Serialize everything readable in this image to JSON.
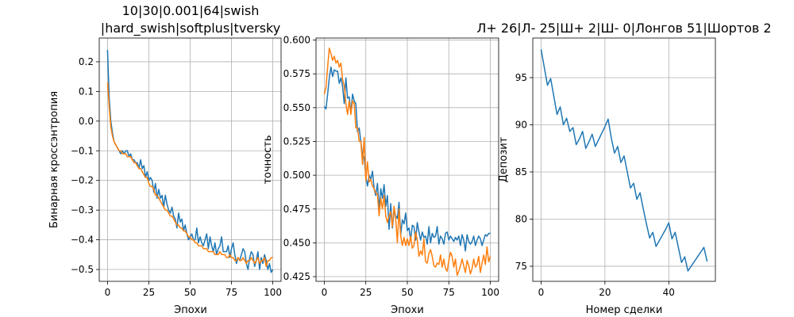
{
  "chart_data": [
    {
      "type": "line",
      "title": "10|30|0.001|64|swish\n|hard_swish|softplus|tversky",
      "xlabel": "Эпохи",
      "ylabel": "Бинарная кроссэнтропия",
      "xlim": [
        -5,
        105
      ],
      "ylim": [
        -0.54,
        0.28
      ],
      "xticks": [
        0,
        25,
        50,
        75,
        100
      ],
      "yticks": [
        -0.5,
        -0.4,
        -0.3,
        -0.2,
        -0.1,
        0.0,
        0.1,
        0.2
      ],
      "ytick_labels": [
        "−0.5",
        "−0.4",
        "−0.3",
        "−0.2",
        "−0.1",
        "0.0",
        "0.1",
        "0.2"
      ],
      "grid": true,
      "colors": [
        "#1f77b4",
        "#ff7f0e"
      ],
      "series": [
        {
          "x": [
            0,
            1,
            2,
            3,
            4,
            5,
            6,
            7,
            8,
            9,
            10,
            11,
            12,
            13,
            14,
            15,
            16,
            17,
            18,
            19,
            20,
            21,
            22,
            23,
            24,
            25,
            26,
            27,
            28,
            29,
            30,
            31,
            32,
            33,
            34,
            35,
            36,
            37,
            38,
            39,
            40,
            41,
            42,
            43,
            44,
            45,
            46,
            47,
            48,
            49,
            50,
            51,
            52,
            53,
            54,
            55,
            56,
            57,
            58,
            59,
            60,
            61,
            62,
            63,
            64,
            65,
            66,
            67,
            68,
            69,
            70,
            71,
            72,
            73,
            74,
            75,
            76,
            77,
            78,
            79,
            80,
            81,
            82,
            83,
            84,
            85,
            86,
            87,
            88,
            89,
            90,
            91,
            92,
            93,
            94,
            95,
            96,
            97,
            98,
            99,
            100
          ],
          "values": [
            0.24,
            0.08,
            0.0,
            -0.04,
            -0.07,
            -0.08,
            -0.09,
            -0.1,
            -0.11,
            -0.1,
            -0.11,
            -0.1,
            -0.1,
            -0.12,
            -0.11,
            -0.13,
            -0.13,
            -0.14,
            -0.14,
            -0.16,
            -0.13,
            -0.16,
            -0.15,
            -0.19,
            -0.17,
            -0.2,
            -0.19,
            -0.2,
            -0.24,
            -0.21,
            -0.26,
            -0.23,
            -0.26,
            -0.25,
            -0.29,
            -0.25,
            -0.28,
            -0.3,
            -0.31,
            -0.29,
            -0.32,
            -0.33,
            -0.36,
            -0.31,
            -0.34,
            -0.33,
            -0.37,
            -0.35,
            -0.38,
            -0.4,
            -0.39,
            -0.38,
            -0.4,
            -0.4,
            -0.36,
            -0.41,
            -0.39,
            -0.41,
            -0.42,
            -0.4,
            -0.38,
            -0.43,
            -0.39,
            -0.42,
            -0.44,
            -0.41,
            -0.45,
            -0.43,
            -0.42,
            -0.39,
            -0.44,
            -0.44,
            -0.44,
            -0.42,
            -0.46,
            -0.43,
            -0.41,
            -0.45,
            -0.48,
            -0.46,
            -0.47,
            -0.45,
            -0.43,
            -0.44,
            -0.48,
            -0.5,
            -0.46,
            -0.44,
            -0.45,
            -0.49,
            -0.47,
            -0.44,
            -0.5,
            -0.46,
            -0.48,
            -0.45,
            -0.47,
            -0.5,
            -0.48,
            -0.51,
            -0.5
          ]
        },
        {
          "x": [
            0,
            1,
            2,
            3,
            4,
            5,
            6,
            7,
            8,
            9,
            10,
            11,
            12,
            13,
            14,
            15,
            16,
            17,
            18,
            19,
            20,
            21,
            22,
            23,
            24,
            25,
            26,
            27,
            28,
            29,
            30,
            31,
            32,
            33,
            34,
            35,
            36,
            37,
            38,
            39,
            40,
            41,
            42,
            43,
            44,
            45,
            46,
            47,
            48,
            49,
            50,
            51,
            52,
            53,
            54,
            55,
            56,
            57,
            58,
            59,
            60,
            61,
            62,
            63,
            64,
            65,
            66,
            67,
            68,
            69,
            70,
            71,
            72,
            73,
            74,
            75,
            76,
            77,
            78,
            79,
            80,
            81,
            82,
            83,
            84,
            85,
            86,
            87,
            88,
            89,
            90,
            91,
            92,
            93,
            94,
            95,
            96,
            97,
            98,
            99,
            100
          ],
          "values": [
            0.13,
            0.05,
            -0.02,
            -0.05,
            -0.07,
            -0.08,
            -0.09,
            -0.1,
            -0.1,
            -0.11,
            -0.11,
            -0.11,
            -0.12,
            -0.12,
            -0.12,
            -0.13,
            -0.14,
            -0.14,
            -0.15,
            -0.16,
            -0.16,
            -0.17,
            -0.18,
            -0.19,
            -0.19,
            -0.21,
            -0.22,
            -0.22,
            -0.23,
            -0.25,
            -0.25,
            -0.26,
            -0.27,
            -0.28,
            -0.29,
            -0.3,
            -0.3,
            -0.31,
            -0.32,
            -0.32,
            -0.33,
            -0.34,
            -0.35,
            -0.35,
            -0.36,
            -0.36,
            -0.37,
            -0.37,
            -0.38,
            -0.39,
            -0.39,
            -0.4,
            -0.4,
            -0.41,
            -0.41,
            -0.42,
            -0.42,
            -0.42,
            -0.43,
            -0.43,
            -0.43,
            -0.44,
            -0.44,
            -0.44,
            -0.44,
            -0.45,
            -0.45,
            -0.45,
            -0.44,
            -0.45,
            -0.45,
            -0.45,
            -0.46,
            -0.46,
            -0.45,
            -0.46,
            -0.46,
            -0.47,
            -0.47,
            -0.46,
            -0.47,
            -0.47,
            -0.46,
            -0.47,
            -0.48,
            -0.47,
            -0.47,
            -0.46,
            -0.47,
            -0.48,
            -0.47,
            -0.46,
            -0.48,
            -0.47,
            -0.47,
            -0.46,
            -0.49,
            -0.47,
            -0.47,
            -0.46,
            -0.46
          ]
        }
      ]
    },
    {
      "type": "line",
      "title": "",
      "xlabel": "Эпохи",
      "ylabel": "точность",
      "xlim": [
        -5,
        105
      ],
      "ylim": [
        0.4215,
        0.6015
      ],
      "xticks": [
        0,
        25,
        50,
        75,
        100
      ],
      "yticks": [
        0.425,
        0.45,
        0.475,
        0.5,
        0.525,
        0.55,
        0.575,
        0.6
      ],
      "ytick_labels": [
        "0.425",
        "0.450",
        "0.475",
        "0.500",
        "0.525",
        "0.550",
        "0.575",
        "0.600"
      ],
      "grid": true,
      "colors": [
        "#1f77b4",
        "#ff7f0e"
      ],
      "series": [
        {
          "x": [
            0,
            1,
            2,
            3,
            4,
            5,
            6,
            7,
            8,
            9,
            10,
            11,
            12,
            13,
            14,
            15,
            16,
            17,
            18,
            19,
            20,
            21,
            22,
            23,
            24,
            25,
            26,
            27,
            28,
            29,
            30,
            31,
            32,
            33,
            34,
            35,
            36,
            37,
            38,
            39,
            40,
            41,
            42,
            43,
            44,
            45,
            46,
            47,
            48,
            49,
            50,
            51,
            52,
            53,
            54,
            55,
            56,
            57,
            58,
            59,
            60,
            61,
            62,
            63,
            64,
            65,
            66,
            67,
            68,
            69,
            70,
            71,
            72,
            73,
            74,
            75,
            76,
            77,
            78,
            79,
            80,
            81,
            82,
            83,
            84,
            85,
            86,
            87,
            88,
            89,
            90,
            91,
            92,
            93,
            94,
            95,
            96,
            97,
            98,
            99,
            100
          ],
          "values": [
            0.551,
            0.549,
            0.56,
            0.572,
            0.58,
            0.573,
            0.578,
            0.577,
            0.577,
            0.568,
            0.572,
            0.566,
            0.553,
            0.572,
            0.557,
            0.558,
            0.546,
            0.56,
            0.555,
            0.553,
            0.532,
            0.535,
            0.525,
            0.515,
            0.513,
            0.499,
            0.492,
            0.5,
            0.497,
            0.503,
            0.49,
            0.485,
            0.494,
            0.475,
            0.49,
            0.483,
            0.493,
            0.477,
            0.485,
            0.46,
            0.479,
            0.461,
            0.473,
            0.47,
            0.468,
            0.48,
            0.456,
            0.467,
            0.464,
            0.472,
            0.459,
            0.461,
            0.452,
            0.463,
            0.462,
            0.452,
            0.465,
            0.458,
            0.452,
            0.458,
            0.454,
            0.455,
            0.449,
            0.462,
            0.45,
            0.457,
            0.454,
            0.455,
            0.462,
            0.449,
            0.455,
            0.453,
            0.449,
            0.457,
            0.458,
            0.452,
            0.455,
            0.453,
            0.451,
            0.454,
            0.452,
            0.455,
            0.448,
            0.456,
            0.452,
            0.444,
            0.456,
            0.451,
            0.449,
            0.451,
            0.455,
            0.448,
            0.452,
            0.455,
            0.453,
            0.448,
            0.452,
            0.456,
            0.455,
            0.457,
            0.457
          ]
        },
        {
          "x": [
            0,
            1,
            2,
            3,
            4,
            5,
            6,
            7,
            8,
            9,
            10,
            11,
            12,
            13,
            14,
            15,
            16,
            17,
            18,
            19,
            20,
            21,
            22,
            23,
            24,
            25,
            26,
            27,
            28,
            29,
            30,
            31,
            32,
            33,
            34,
            35,
            36,
            37,
            38,
            39,
            40,
            41,
            42,
            43,
            44,
            45,
            46,
            47,
            48,
            49,
            50,
            51,
            52,
            53,
            54,
            55,
            56,
            57,
            58,
            59,
            60,
            61,
            62,
            63,
            64,
            65,
            66,
            67,
            68,
            69,
            70,
            71,
            72,
            73,
            74,
            75,
            76,
            77,
            78,
            79,
            80,
            81,
            82,
            83,
            84,
            85,
            86,
            87,
            88,
            89,
            90,
            91,
            92,
            93,
            94,
            95,
            96,
            97,
            98,
            99,
            100
          ],
          "values": [
            0.56,
            0.565,
            0.58,
            0.594,
            0.59,
            0.585,
            0.588,
            0.583,
            0.585,
            0.58,
            0.583,
            0.571,
            0.566,
            0.553,
            0.545,
            0.555,
            0.545,
            0.555,
            0.553,
            0.535,
            0.535,
            0.525,
            0.525,
            0.508,
            0.528,
            0.496,
            0.51,
            0.495,
            0.497,
            0.492,
            0.49,
            0.487,
            0.486,
            0.47,
            0.483,
            0.475,
            0.485,
            0.47,
            0.465,
            0.47,
            0.473,
            0.462,
            0.477,
            0.468,
            0.45,
            0.475,
            0.455,
            0.448,
            0.454,
            0.448,
            0.453,
            0.448,
            0.455,
            0.446,
            0.448,
            0.458,
            0.452,
            0.44,
            0.444,
            0.441,
            0.453,
            0.436,
            0.435,
            0.442,
            0.445,
            0.44,
            0.433,
            0.432,
            0.435,
            0.434,
            0.441,
            0.432,
            0.438,
            0.431,
            0.429,
            0.437,
            0.443,
            0.44,
            0.432,
            0.438,
            0.426,
            0.429,
            0.433,
            0.438,
            0.433,
            0.428,
            0.437,
            0.433,
            0.427,
            0.431,
            0.438,
            0.432,
            0.434,
            0.44,
            0.428,
            0.435,
            0.441,
            0.434,
            0.447,
            0.436,
            0.44
          ]
        }
      ]
    },
    {
      "type": "line",
      "title": "Л+ 26|Л- 25|Ш+ 2|Ш- 0|Лонгов 51|Шортов 2",
      "xlabel": "Номер сделки",
      "ylabel": "Депозит",
      "xlim": [
        -2.6,
        54.6
      ],
      "ylim": [
        73.4,
        99.2
      ],
      "xticks": [
        0,
        20,
        40
      ],
      "yticks": [
        75,
        80,
        85,
        90,
        95
      ],
      "ytick_labels": [
        "75",
        "80",
        "85",
        "90",
        "95"
      ],
      "grid": true,
      "colors": [
        "#1f77b4"
      ],
      "series": [
        {
          "x": [
            0,
            1,
            2,
            3,
            4,
            5,
            6,
            7,
            8,
            9,
            10,
            11,
            12,
            13,
            14,
            15,
            16,
            17,
            18,
            19,
            20,
            21,
            22,
            23,
            24,
            25,
            26,
            27,
            28,
            29,
            30,
            31,
            32,
            33,
            34,
            35,
            36,
            37,
            38,
            39,
            40,
            41,
            42,
            43,
            44,
            45,
            46,
            47,
            48,
            49,
            50,
            51,
            52
          ],
          "values": [
            98.0,
            96.1,
            94.2,
            94.9,
            93.0,
            91.1,
            91.9,
            90.0,
            90.7,
            89.3,
            89.7,
            87.9,
            88.5,
            89.3,
            87.5,
            88.2,
            89.0,
            87.7,
            88.4,
            89.1,
            89.8,
            90.6,
            88.6,
            87.0,
            87.7,
            86.0,
            86.7,
            85.0,
            83.3,
            83.8,
            82.1,
            82.8,
            81.1,
            79.5,
            78.0,
            78.6,
            77.1,
            77.7,
            78.3,
            78.9,
            79.6,
            77.9,
            78.6,
            77.0,
            75.4,
            76.0,
            74.5,
            75.0,
            75.5,
            76.0,
            76.5,
            77.0,
            75.5
          ]
        }
      ]
    }
  ]
}
